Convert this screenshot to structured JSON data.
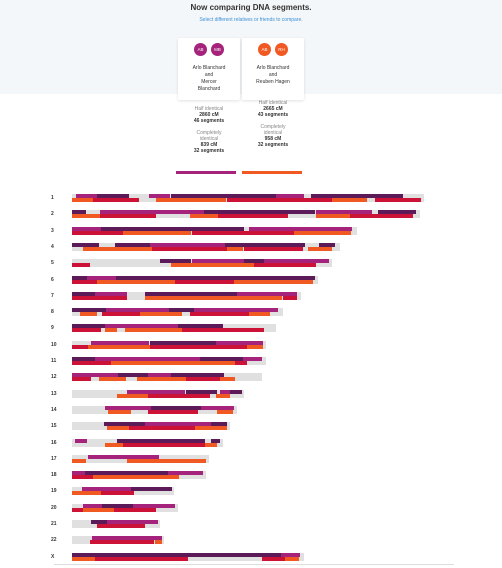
{
  "header": {
    "title": "Now comparing DNA segments.",
    "subtitle": "Select different relatives or friends to compare."
  },
  "comparisons": [
    {
      "avatars": [
        {
          "initials": "AB",
          "color": "#a6237c"
        },
        {
          "initials": "MB",
          "color": "#a6237c"
        }
      ],
      "name_line1": "Arlo Blanchard",
      "name_line2": "and",
      "name_line3": "Mercer",
      "name_line4": "Blanchard",
      "half_label": "Half identical",
      "half_cm": "2860 cM",
      "half_segments": "46 segments",
      "complete_label1": "Completely",
      "complete_label2": "identical",
      "complete_cm": "839 cM",
      "complete_segments": "32 segments",
      "color": "#a6237c"
    },
    {
      "avatars": [
        {
          "initials": "AB",
          "color": "#f05a22"
        },
        {
          "initials": "RH",
          "color": "#f05a22"
        }
      ],
      "name_line1": "Arlo Blanchard",
      "name_line2": "and",
      "name_line3": "Reuben Hagen",
      "name_line4": "",
      "half_label": "Half identical",
      "half_cm": "2665 cM",
      "half_segments": "43 segments",
      "complete_label1": "Completely",
      "complete_label2": "identical",
      "complete_cm": "958 cM",
      "complete_segments": "32 segments",
      "color": "#f05a22"
    }
  ],
  "colors": {
    "half_a": "#a6237c",
    "full_a": "#5c1a58",
    "half_b": "#f05a22",
    "full_b": "#cc1236",
    "background": "#e0e0e0"
  },
  "chromosomes": [
    {
      "label": "1",
      "length": 1.0,
      "segs": [
        {
          "t": "a",
          "s": 0.01,
          "e": 0.07,
          "f": 0
        },
        {
          "t": "a",
          "s": 0.07,
          "e": 0.16,
          "f": 1
        },
        {
          "t": "a",
          "s": 0.22,
          "e": 0.28,
          "f": 0
        },
        {
          "t": "a",
          "s": 0.28,
          "e": 0.58,
          "f": 1
        },
        {
          "t": "a",
          "s": 0.58,
          "e": 0.66,
          "f": 0
        },
        {
          "t": "a",
          "s": 0.68,
          "e": 0.94,
          "f": 1
        },
        {
          "t": "b",
          "s": 0.0,
          "e": 0.06,
          "f": 0
        },
        {
          "t": "b",
          "s": 0.06,
          "e": 0.19,
          "f": 1
        },
        {
          "t": "b",
          "s": 0.24,
          "e": 0.44,
          "f": 0
        },
        {
          "t": "b",
          "s": 0.44,
          "e": 0.74,
          "f": 1
        },
        {
          "t": "b",
          "s": 0.74,
          "e": 0.84,
          "f": 0
        },
        {
          "t": "b",
          "s": 0.86,
          "e": 0.99,
          "f": 1
        }
      ]
    },
    {
      "label": "2",
      "length": 0.99,
      "segs": [
        {
          "t": "a",
          "s": 0.0,
          "e": 0.04,
          "f": 1
        },
        {
          "t": "a",
          "s": 0.08,
          "e": 0.38,
          "f": 0
        },
        {
          "t": "a",
          "s": 0.38,
          "e": 0.7,
          "f": 1
        },
        {
          "t": "a",
          "s": 0.7,
          "e": 0.86,
          "f": 0
        },
        {
          "t": "a",
          "s": 0.88,
          "e": 0.99,
          "f": 1
        },
        {
          "t": "b",
          "s": 0.0,
          "e": 0.08,
          "f": 0
        },
        {
          "t": "b",
          "s": 0.08,
          "e": 0.24,
          "f": 1
        },
        {
          "t": "b",
          "s": 0.34,
          "e": 0.42,
          "f": 0
        },
        {
          "t": "b",
          "s": 0.42,
          "e": 0.62,
          "f": 1
        },
        {
          "t": "b",
          "s": 0.7,
          "e": 0.8,
          "f": 0
        },
        {
          "t": "b",
          "s": 0.8,
          "e": 0.98,
          "f": 1
        }
      ]
    },
    {
      "label": "3",
      "length": 0.81,
      "segs": [
        {
          "t": "a",
          "s": 0.0,
          "e": 0.1,
          "f": 0
        },
        {
          "t": "a",
          "s": 0.1,
          "e": 0.6,
          "f": 1
        },
        {
          "t": "a",
          "s": 0.62,
          "e": 0.98,
          "f": 0
        },
        {
          "t": "b",
          "s": 0.0,
          "e": 0.18,
          "f": 1
        },
        {
          "t": "b",
          "s": 0.18,
          "e": 0.42,
          "f": 0
        },
        {
          "t": "b",
          "s": 0.42,
          "e": 0.78,
          "f": 1
        },
        {
          "t": "b",
          "s": 0.78,
          "e": 0.98,
          "f": 0
        }
      ]
    },
    {
      "label": "4",
      "length": 0.76,
      "segs": [
        {
          "t": "a",
          "s": 0.0,
          "e": 0.1,
          "f": 1
        },
        {
          "t": "a",
          "s": 0.16,
          "e": 0.29,
          "f": 1
        },
        {
          "t": "a",
          "s": 0.29,
          "e": 0.57,
          "f": 0
        },
        {
          "t": "a",
          "s": 0.57,
          "e": 0.87,
          "f": 1
        },
        {
          "t": "a",
          "s": 0.92,
          "e": 0.98,
          "f": 1
        },
        {
          "t": "b",
          "s": 0.04,
          "e": 0.3,
          "f": 0
        },
        {
          "t": "b",
          "s": 0.3,
          "e": 0.58,
          "f": 1
        },
        {
          "t": "b",
          "s": 0.58,
          "e": 0.64,
          "f": 0
        },
        {
          "t": "b",
          "s": 0.64,
          "e": 0.86,
          "f": 1
        },
        {
          "t": "b",
          "s": 0.88,
          "e": 0.97,
          "f": 0
        }
      ]
    },
    {
      "label": "5",
      "length": 0.74,
      "segs": [
        {
          "t": "a",
          "s": 0.34,
          "e": 0.46,
          "f": 1
        },
        {
          "t": "a",
          "s": 0.46,
          "e": 0.66,
          "f": 0
        },
        {
          "t": "a",
          "s": 0.66,
          "e": 0.74,
          "f": 1
        },
        {
          "t": "a",
          "s": 0.74,
          "e": 0.99,
          "f": 0
        },
        {
          "t": "b",
          "s": 0.0,
          "e": 0.07,
          "f": 1
        },
        {
          "t": "b",
          "s": 0.38,
          "e": 0.7,
          "f": 0
        },
        {
          "t": "b",
          "s": 0.7,
          "e": 0.94,
          "f": 1
        }
      ]
    },
    {
      "label": "6",
      "length": 0.7,
      "segs": [
        {
          "t": "a",
          "s": 0.0,
          "e": 0.06,
          "f": 1
        },
        {
          "t": "a",
          "s": 0.06,
          "e": 0.18,
          "f": 0
        },
        {
          "t": "a",
          "s": 0.18,
          "e": 0.55,
          "f": 1
        },
        {
          "t": "a",
          "s": 0.55,
          "e": 0.99,
          "f": 1
        },
        {
          "t": "b",
          "s": 0.0,
          "e": 0.1,
          "f": 1
        },
        {
          "t": "b",
          "s": 0.1,
          "e": 0.42,
          "f": 0
        },
        {
          "t": "b",
          "s": 0.42,
          "e": 0.66,
          "f": 1
        },
        {
          "t": "b",
          "s": 0.66,
          "e": 0.98,
          "f": 0
        }
      ]
    },
    {
      "label": "7",
      "length": 0.65,
      "segs": [
        {
          "t": "a",
          "s": 0.0,
          "e": 0.1,
          "f": 1
        },
        {
          "t": "a",
          "s": 0.1,
          "e": 0.24,
          "f": 0
        },
        {
          "t": "a",
          "s": 0.32,
          "e": 0.72,
          "f": 1
        },
        {
          "t": "a",
          "s": 0.72,
          "e": 0.98,
          "f": 0
        },
        {
          "t": "b",
          "s": 0.0,
          "e": 0.24,
          "f": 1
        },
        {
          "t": "b",
          "s": 0.32,
          "e": 0.92,
          "f": 0
        },
        {
          "t": "b",
          "s": 0.92,
          "e": 0.98,
          "f": 1
        }
      ]
    },
    {
      "label": "8",
      "length": 0.6,
      "segs": [
        {
          "t": "a",
          "s": 0.0,
          "e": 0.16,
          "f": 1
        },
        {
          "t": "a",
          "s": 0.16,
          "e": 0.46,
          "f": 0
        },
        {
          "t": "a",
          "s": 0.46,
          "e": 0.58,
          "f": 1
        },
        {
          "t": "a",
          "s": 0.58,
          "e": 0.98,
          "f": 0
        },
        {
          "t": "b",
          "s": 0.04,
          "e": 0.12,
          "f": 0
        },
        {
          "t": "b",
          "s": 0.14,
          "e": 0.32,
          "f": 1
        },
        {
          "t": "b",
          "s": 0.32,
          "e": 0.52,
          "f": 0
        },
        {
          "t": "b",
          "s": 0.56,
          "e": 0.84,
          "f": 1
        },
        {
          "t": "b",
          "s": 0.84,
          "e": 0.94,
          "f": 0
        }
      ]
    },
    {
      "label": "9",
      "length": 0.58,
      "segs": [
        {
          "t": "a",
          "s": 0.0,
          "e": 0.16,
          "f": 1
        },
        {
          "t": "a",
          "s": 0.16,
          "e": 0.24,
          "f": 0
        },
        {
          "t": "a",
          "s": 0.24,
          "e": 0.52,
          "f": 0
        },
        {
          "t": "a",
          "s": 0.52,
          "e": 0.74,
          "f": 1
        },
        {
          "t": "b",
          "s": 0.0,
          "e": 0.14,
          "f": 1
        },
        {
          "t": "b",
          "s": 0.16,
          "e": 0.22,
          "f": 0
        },
        {
          "t": "b",
          "s": 0.26,
          "e": 0.54,
          "f": 0
        },
        {
          "t": "b",
          "s": 0.54,
          "e": 0.94,
          "f": 1
        }
      ]
    },
    {
      "label": "10",
      "length": 0.55,
      "segs": [
        {
          "t": "a",
          "s": 0.1,
          "e": 0.4,
          "f": 0
        },
        {
          "t": "a",
          "s": 0.4,
          "e": 0.74,
          "f": 1
        },
        {
          "t": "a",
          "s": 0.74,
          "e": 0.98,
          "f": 0
        },
        {
          "t": "b",
          "s": 0.0,
          "e": 0.08,
          "f": 1
        },
        {
          "t": "b",
          "s": 0.08,
          "e": 0.4,
          "f": 0
        },
        {
          "t": "b",
          "s": 0.4,
          "e": 0.9,
          "f": 1
        },
        {
          "t": "b",
          "s": 0.9,
          "e": 0.98,
          "f": 0
        }
      ]
    },
    {
      "label": "11",
      "length": 0.55,
      "segs": [
        {
          "t": "a",
          "s": 0.0,
          "e": 0.12,
          "f": 1
        },
        {
          "t": "a",
          "s": 0.12,
          "e": 0.66,
          "f": 0
        },
        {
          "t": "a",
          "s": 0.66,
          "e": 0.88,
          "f": 1
        },
        {
          "t": "a",
          "s": 0.88,
          "e": 0.98,
          "f": 0
        },
        {
          "t": "b",
          "s": 0.0,
          "e": 0.2,
          "f": 1
        },
        {
          "t": "b",
          "s": 0.2,
          "e": 0.84,
          "f": 0
        },
        {
          "t": "b",
          "s": 0.84,
          "e": 0.9,
          "f": 1
        }
      ]
    },
    {
      "label": "12",
      "length": 0.54,
      "segs": [
        {
          "t": "a",
          "s": 0.0,
          "e": 0.24,
          "f": 0
        },
        {
          "t": "a",
          "s": 0.24,
          "e": 0.4,
          "f": 1
        },
        {
          "t": "a",
          "s": 0.4,
          "e": 0.52,
          "f": 0
        },
        {
          "t": "a",
          "s": 0.52,
          "e": 0.8,
          "f": 1
        },
        {
          "t": "b",
          "s": 0.0,
          "e": 0.1,
          "f": 1
        },
        {
          "t": "b",
          "s": 0.14,
          "e": 0.28,
          "f": 0
        },
        {
          "t": "b",
          "s": 0.34,
          "e": 0.6,
          "f": 0
        },
        {
          "t": "b",
          "s": 0.6,
          "e": 0.78,
          "f": 1
        },
        {
          "t": "b",
          "s": 0.78,
          "e": 0.86,
          "f": 0
        }
      ]
    },
    {
      "label": "13",
      "length": 0.49,
      "segs": [
        {
          "t": "a",
          "s": 0.32,
          "e": 0.66,
          "f": 0
        },
        {
          "t": "a",
          "s": 0.66,
          "e": 0.84,
          "f": 1
        },
        {
          "t": "a",
          "s": 0.86,
          "e": 0.92,
          "f": 0
        },
        {
          "t": "a",
          "s": 0.92,
          "e": 0.99,
          "f": 1
        },
        {
          "t": "b",
          "s": 0.26,
          "e": 0.44,
          "f": 0
        },
        {
          "t": "b",
          "s": 0.44,
          "e": 0.8,
          "f": 1
        },
        {
          "t": "b",
          "s": 0.84,
          "e": 0.92,
          "f": 0
        }
      ]
    },
    {
      "label": "14",
      "length": 0.47,
      "segs": [
        {
          "t": "a",
          "s": 0.2,
          "e": 0.48,
          "f": 0
        },
        {
          "t": "a",
          "s": 0.48,
          "e": 0.78,
          "f": 1
        },
        {
          "t": "a",
          "s": 0.78,
          "e": 0.98,
          "f": 0
        },
        {
          "t": "b",
          "s": 0.22,
          "e": 0.36,
          "f": 0
        },
        {
          "t": "b",
          "s": 0.46,
          "e": 0.76,
          "f": 1
        },
        {
          "t": "b",
          "s": 0.88,
          "e": 0.98,
          "f": 0
        }
      ]
    },
    {
      "label": "15",
      "length": 0.45,
      "segs": [
        {
          "t": "a",
          "s": 0.2,
          "e": 0.46,
          "f": 1
        },
        {
          "t": "a",
          "s": 0.46,
          "e": 0.88,
          "f": 0
        },
        {
          "t": "a",
          "s": 0.88,
          "e": 0.98,
          "f": 1
        },
        {
          "t": "b",
          "s": 0.22,
          "e": 0.36,
          "f": 0
        },
        {
          "t": "b",
          "s": 0.36,
          "e": 0.78,
          "f": 1
        },
        {
          "t": "b",
          "s": 0.78,
          "e": 0.98,
          "f": 0
        }
      ]
    },
    {
      "label": "16",
      "length": 0.43,
      "segs": [
        {
          "t": "a",
          "s": 0.02,
          "e": 0.1,
          "f": 0
        },
        {
          "t": "a",
          "s": 0.3,
          "e": 0.88,
          "f": 1
        },
        {
          "t": "a",
          "s": 0.92,
          "e": 0.98,
          "f": 1
        },
        {
          "t": "b",
          "s": 0.22,
          "e": 0.34,
          "f": 0
        },
        {
          "t": "b",
          "s": 0.34,
          "e": 0.88,
          "f": 1
        },
        {
          "t": "b",
          "s": 0.88,
          "e": 0.96,
          "f": 0
        }
      ]
    },
    {
      "label": "17",
      "length": 0.39,
      "segs": [
        {
          "t": "a",
          "s": 0.12,
          "e": 0.2,
          "f": 0
        },
        {
          "t": "a",
          "s": 0.2,
          "e": 0.64,
          "f": 0
        },
        {
          "t": "b",
          "s": 0.0,
          "e": 0.1,
          "f": 0
        },
        {
          "t": "b",
          "s": 0.4,
          "e": 0.98,
          "f": 0
        }
      ]
    },
    {
      "label": "18",
      "length": 0.38,
      "segs": [
        {
          "t": "a",
          "s": 0.0,
          "e": 0.1,
          "f": 0
        },
        {
          "t": "a",
          "s": 0.1,
          "e": 0.72,
          "f": 1
        },
        {
          "t": "a",
          "s": 0.72,
          "e": 0.98,
          "f": 0
        },
        {
          "t": "b",
          "s": 0.0,
          "e": 0.16,
          "f": 1
        },
        {
          "t": "b",
          "s": 0.16,
          "e": 0.8,
          "f": 0
        }
      ]
    },
    {
      "label": "19",
      "length": 0.29,
      "segs": [
        {
          "t": "a",
          "s": 0.1,
          "e": 0.58,
          "f": 0
        },
        {
          "t": "a",
          "s": 0.58,
          "e": 0.98,
          "f": 1
        },
        {
          "t": "b",
          "s": 0.0,
          "e": 0.28,
          "f": 0
        },
        {
          "t": "b",
          "s": 0.28,
          "e": 0.6,
          "f": 1
        }
      ]
    },
    {
      "label": "20",
      "length": 0.3,
      "segs": [
        {
          "t": "a",
          "s": 0.1,
          "e": 0.28,
          "f": 0
        },
        {
          "t": "a",
          "s": 0.28,
          "e": 0.58,
          "f": 1
        },
        {
          "t": "a",
          "s": 0.58,
          "e": 0.98,
          "f": 0
        },
        {
          "t": "b",
          "s": 0.0,
          "e": 0.1,
          "f": 1
        },
        {
          "t": "b",
          "s": 0.1,
          "e": 0.4,
          "f": 0
        },
        {
          "t": "b",
          "s": 0.4,
          "e": 0.8,
          "f": 1
        }
      ]
    },
    {
      "label": "21",
      "length": 0.25,
      "segs": [
        {
          "t": "a",
          "s": 0.22,
          "e": 0.4,
          "f": 1
        },
        {
          "t": "a",
          "s": 0.4,
          "e": 0.98,
          "f": 0
        },
        {
          "t": "b",
          "s": 0.28,
          "e": 0.82,
          "f": 1
        }
      ]
    },
    {
      "label": "22",
      "length": 0.26,
      "segs": [
        {
          "t": "a",
          "s": 0.22,
          "e": 0.98,
          "f": 0
        },
        {
          "t": "b",
          "s": 0.2,
          "e": 0.9,
          "f": 1
        },
        {
          "t": "b",
          "s": 0.9,
          "e": 0.98,
          "f": 0
        }
      ]
    },
    {
      "label": "X",
      "length": 0.66,
      "segs": [
        {
          "t": "a",
          "s": 0.0,
          "e": 0.9,
          "f": 1
        },
        {
          "t": "a",
          "s": 0.9,
          "e": 0.98,
          "f": 0
        },
        {
          "t": "b",
          "s": 0.0,
          "e": 0.1,
          "f": 0
        },
        {
          "t": "b",
          "s": 0.1,
          "e": 0.5,
          "f": 1
        },
        {
          "t": "b",
          "s": 0.82,
          "e": 0.92,
          "f": 1
        },
        {
          "t": "b",
          "s": 0.92,
          "e": 0.98,
          "f": 0
        }
      ]
    }
  ]
}
